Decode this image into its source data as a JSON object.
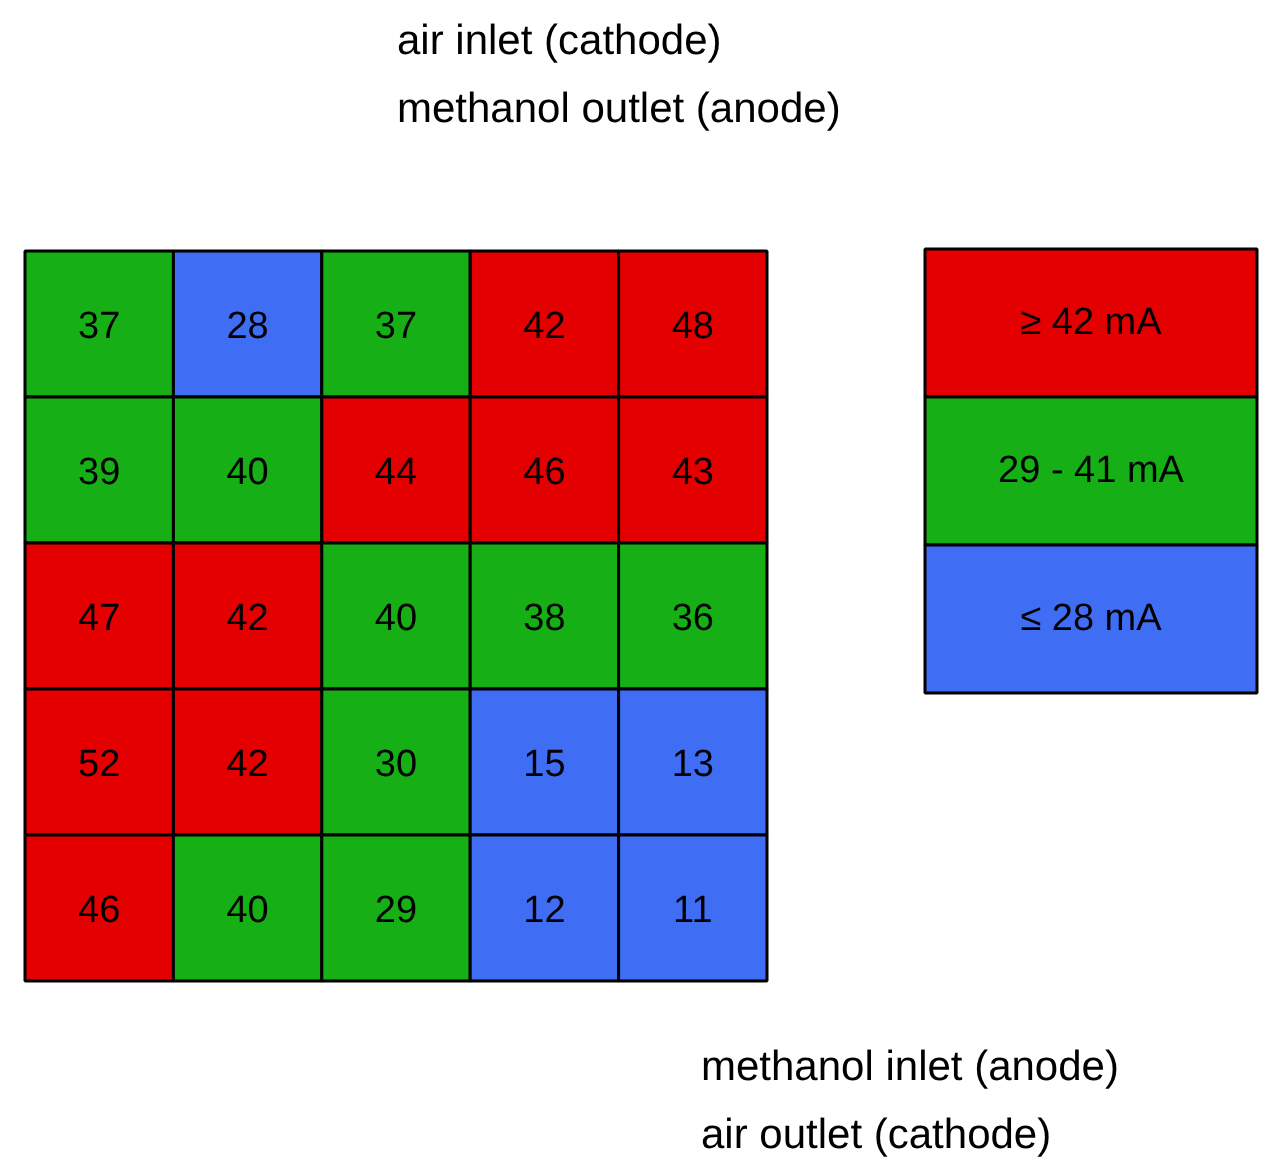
{
  "chart_data": [
    {
      "type": "heatmap",
      "categories": [
        null,
        null,
        null,
        null,
        null
      ],
      "y_categories": [
        null,
        null,
        null,
        null,
        null
      ],
      "cells": [
        [
          37,
          28,
          37,
          42,
          48
        ],
        [
          39,
          40,
          44,
          46,
          43
        ],
        [
          47,
          42,
          40,
          38,
          36
        ],
        [
          52,
          42,
          30,
          15,
          13
        ],
        [
          46,
          40,
          29,
          12,
          11
        ]
      ],
      "colors": [
        [
          "#16b016",
          "#3f6ef5",
          "#16b016",
          "#e40000",
          "#e40000"
        ],
        [
          "#16b016",
          "#16b016",
          "#e40000",
          "#e40000",
          "#e40000"
        ],
        [
          "#e40000",
          "#e40000",
          "#16b016",
          "#16b016",
          "#16b016"
        ],
        [
          "#e40000",
          "#e40000",
          "#16b016",
          "#3f6ef5",
          "#3f6ef5"
        ],
        [
          "#e40000",
          "#16b016",
          "#16b016",
          "#3f6ef5",
          "#3f6ef5"
        ]
      ],
      "data_labels": true,
      "annotations": [
        "air inlet (cathode)",
        "methanol outlet (anode)",
        "methanol inlet (anode)",
        "air outlet (cathode)"
      ]
    },
    {
      "type": "other",
      "categories": [
        "≥ 42 mA",
        "29 - 41 mA",
        "≤ 28 mA"
      ],
      "colors": [
        "#e40000",
        "#16b016",
        "#3f6ef5"
      ]
    }
  ]
}
